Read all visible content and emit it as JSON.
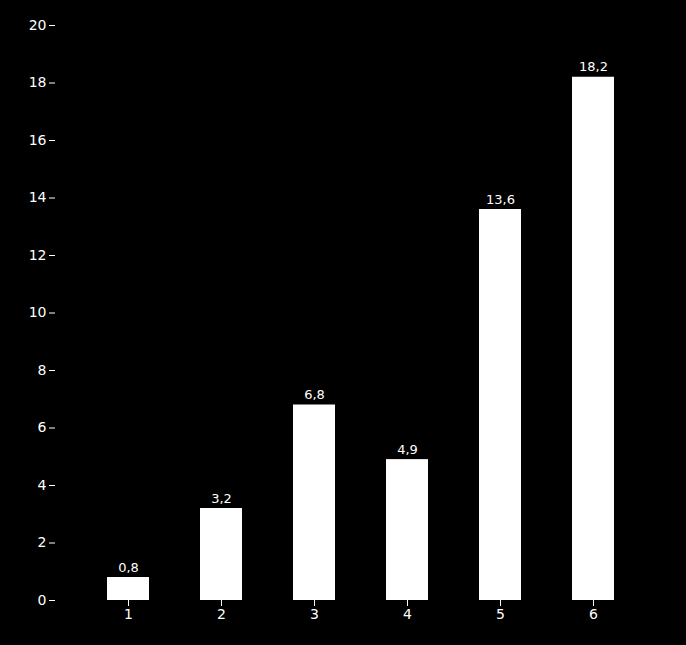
{
  "chart_data": {
    "type": "bar",
    "categories": [
      1,
      2,
      3,
      4,
      5,
      6
    ],
    "values": [
      0.8,
      3.2,
      6.8,
      4.9,
      13.6,
      18.2
    ],
    "value_labels": [
      "0,8",
      "3,2",
      "6,8",
      "4,9",
      "13,6",
      "18,2"
    ],
    "data_labels": true,
    "color": "#ffffff",
    "ylim": [
      0,
      20
    ],
    "yticks": [
      0,
      2,
      4,
      6,
      8,
      10,
      12,
      14,
      16,
      18,
      20
    ],
    "grid": false
  }
}
